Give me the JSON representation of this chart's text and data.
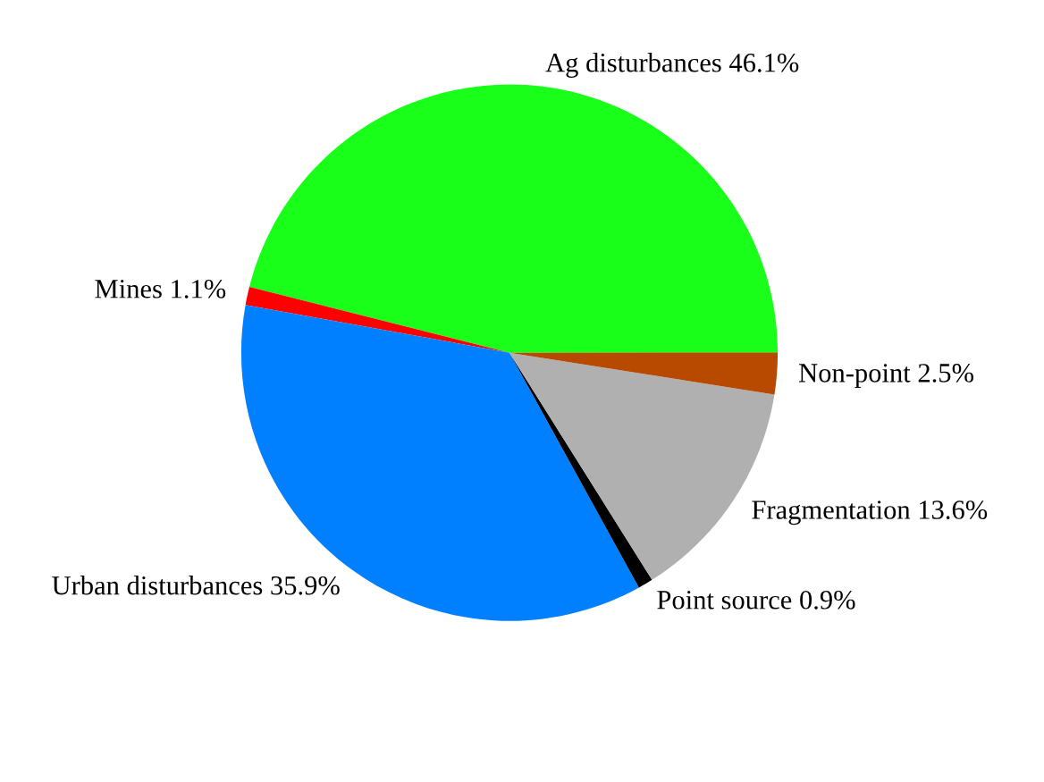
{
  "chart_data": {
    "type": "pie",
    "categories": [
      "Ag disturbances",
      "Mines",
      "Urban disturbances",
      "Point source",
      "Fragmentation",
      "Non-point"
    ],
    "values": [
      46.1,
      1.1,
      35.9,
      0.9,
      13.6,
      2.5
    ],
    "value_labels": [
      "46.1%",
      "1.1%",
      "35.9%",
      "0.9%",
      "13.6%",
      "2.5%"
    ],
    "colors": [
      "#19ff19",
      "#ff0000",
      "#0080ff",
      "#000000",
      "#b0b0b0",
      "#b84a00"
    ],
    "legend": false
  }
}
